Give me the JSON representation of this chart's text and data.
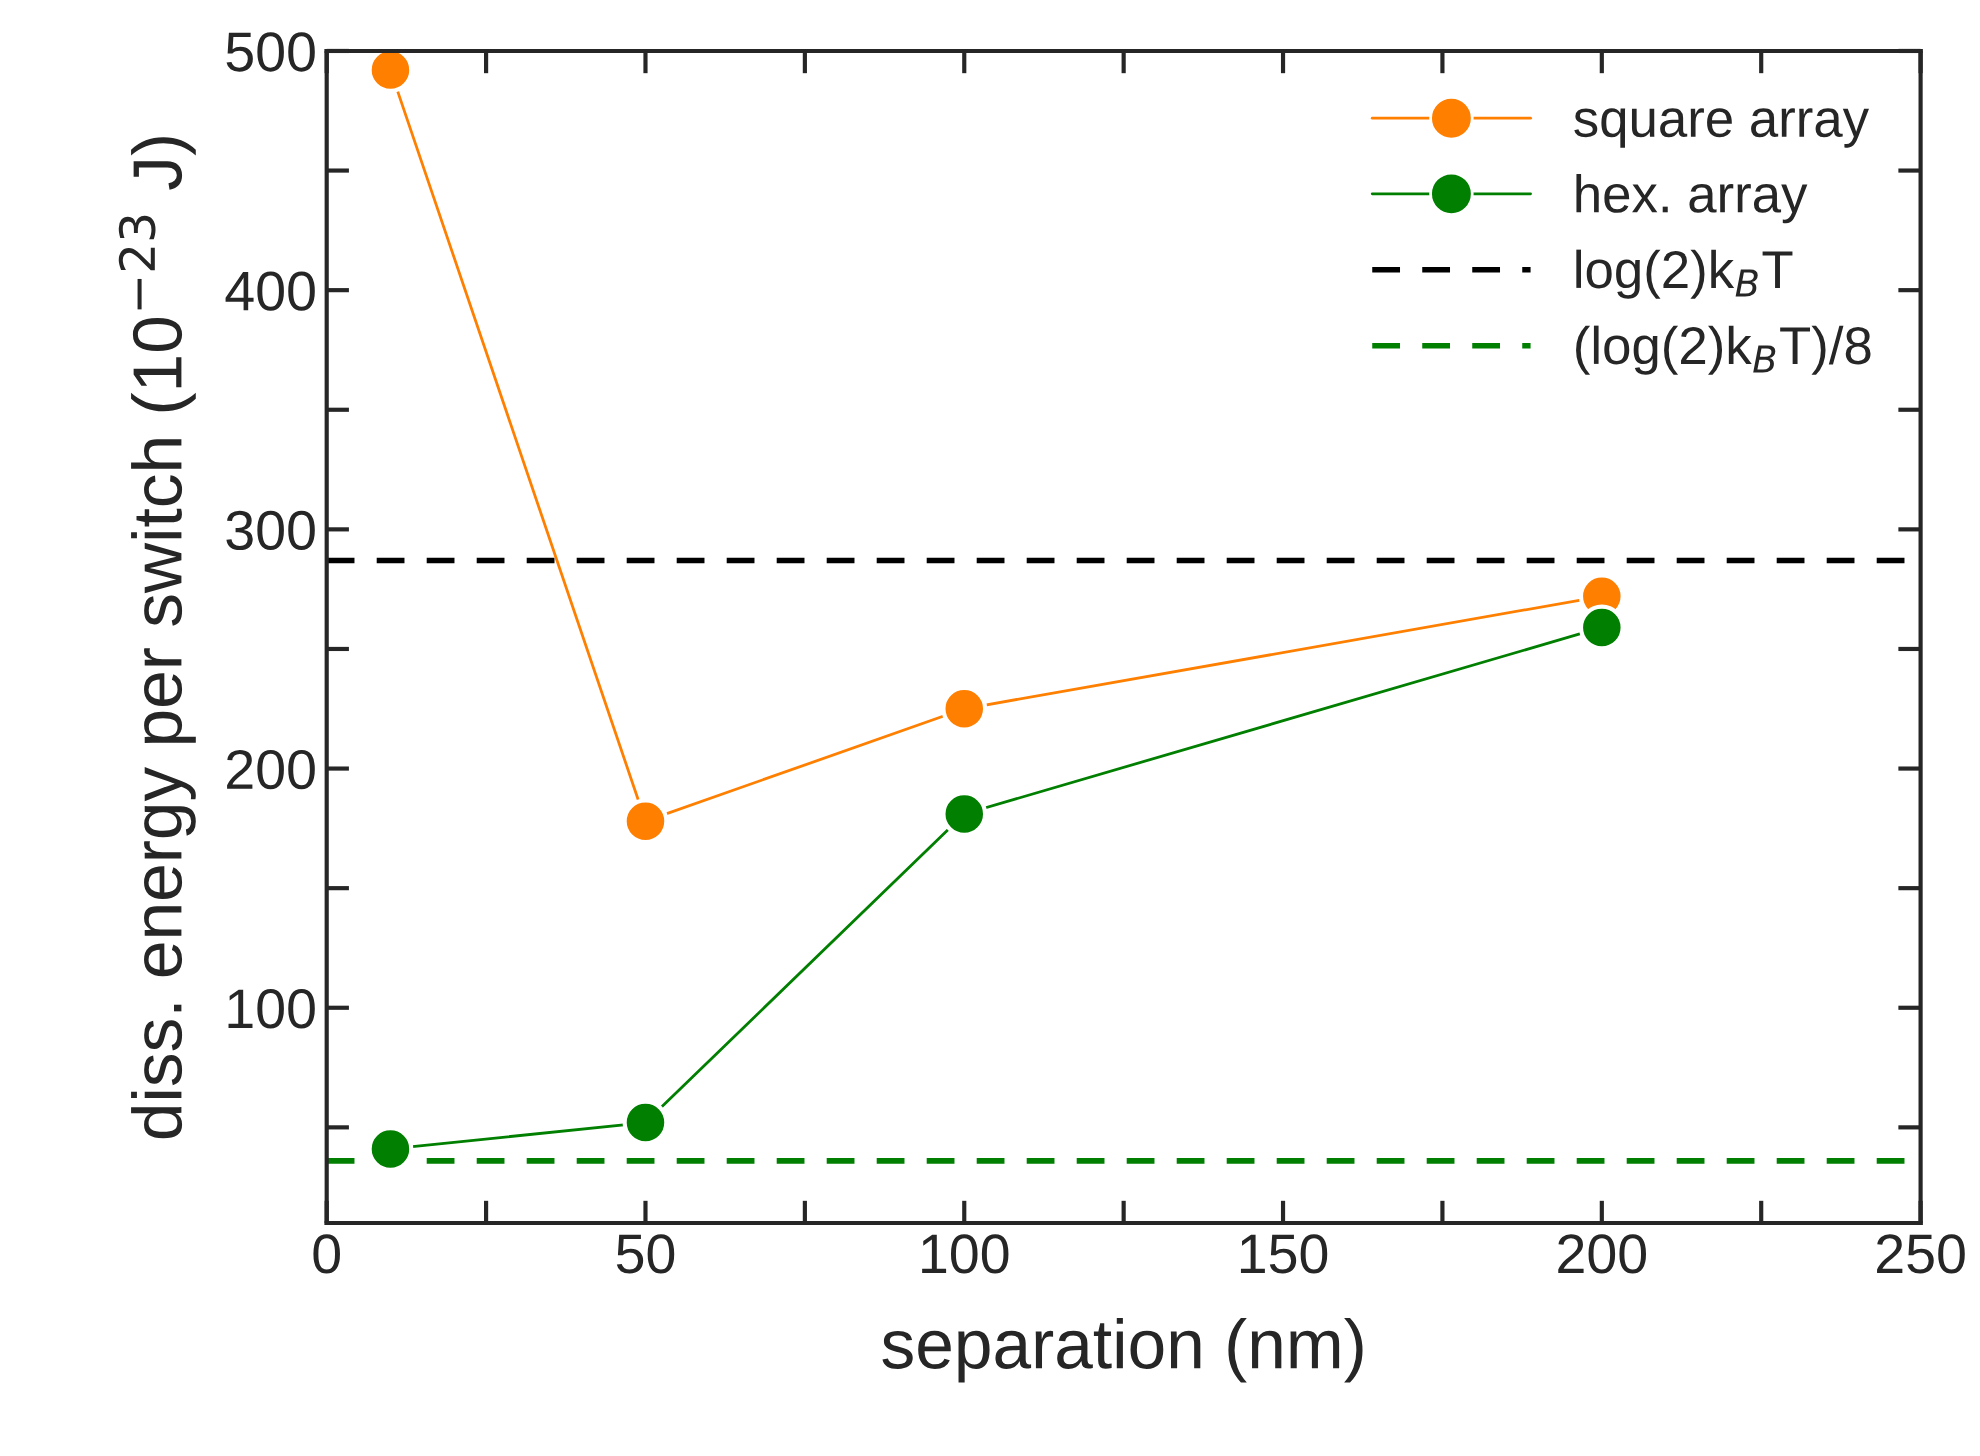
{
  "chart_data": {
    "type": "line",
    "xlabel": "separation (nm)",
    "ylabel": "diss. energy per switch (10$^{−23}$ J)",
    "x": [
      10,
      50,
      100,
      200
    ],
    "series": [
      {
        "name": "square array",
        "color": "#ff7f00",
        "values": [
          492,
          178,
          225,
          272
        ]
      },
      {
        "name": "hex. array",
        "color": "#007f00",
        "values": [
          41,
          52,
          181,
          259
        ]
      }
    ],
    "ref_lines": [
      {
        "axis": "y",
        "value": 287,
        "label": "log(2)k$_{B}$T",
        "color": "#000000",
        "line_style": "dashed"
      },
      {
        "axis": "y",
        "value": 36,
        "label": "(log(2)k$_{B}$T)/8",
        "color": "#007f00",
        "line_style": "dashed"
      }
    ],
    "xlim": [
      0,
      250
    ],
    "ylim": [
      10,
      500
    ],
    "xticks": [
      0,
      {
        "value": 25,
        "label": null
      },
      50,
      {
        "value": 75,
        "label": null
      },
      100,
      {
        "value": 125,
        "label": null
      },
      150,
      {
        "value": 175,
        "label": null
      },
      200,
      {
        "value": 225,
        "label": null
      },
      250
    ],
    "yticks": [
      {
        "value": 50,
        "label": null
      },
      100,
      {
        "value": 150,
        "label": null
      },
      200,
      {
        "value": 250,
        "label": null
      },
      300,
      {
        "value": 350,
        "label": null
      },
      400,
      {
        "value": 450,
        "label": null
      },
      500
    ],
    "marker": "circle",
    "line_style": "solid",
    "grid": false,
    "legend": "top right"
  }
}
